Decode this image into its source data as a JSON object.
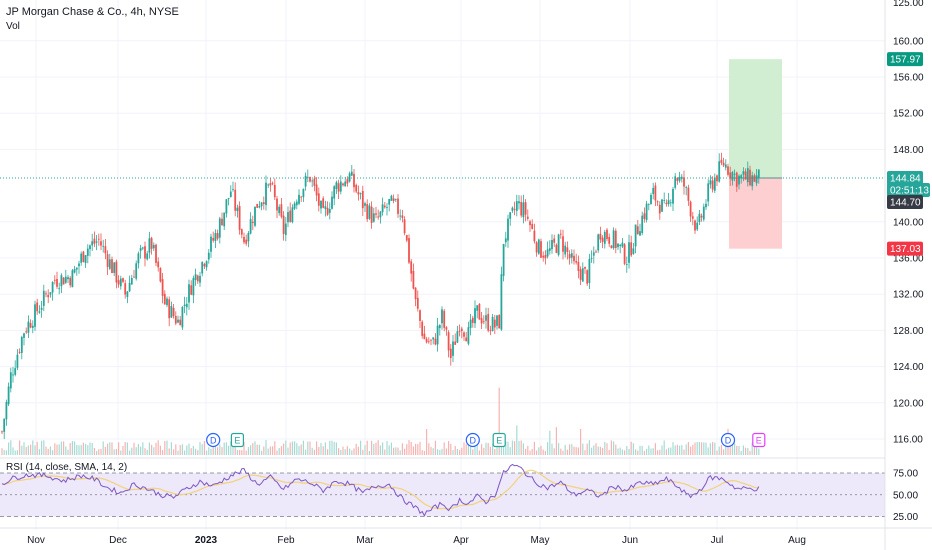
{
  "header": {
    "symbol_line": "JP Morgan Chase & Co., 4h, NYSE",
    "sub_line": "Vol"
  },
  "rsi": {
    "label": "RSI (14, close, SMA, 14, 2)",
    "ticks": [
      75.0,
      50.0,
      25.0
    ],
    "tick_labels": [
      "75.00",
      "50.00",
      "25.00"
    ]
  },
  "colors": {
    "up": "#26a69a",
    "down": "#ef5350",
    "target_zone": "#d1eed2",
    "stop_zone": "#fdcfd1",
    "target_tag": "#089981",
    "stop_tag": "#f23645",
    "price_tag": "#26a69a",
    "countdown_tag": "#363a45",
    "rsi_line": "#7e57c2",
    "rsi_ma": "#f2d27a",
    "rsi_band": "#ede9fb",
    "grid": "#f0f3fa"
  },
  "chart_data": {
    "type": "candlestick",
    "y_ticks": [
      116,
      120,
      124,
      128,
      132,
      136,
      140,
      148,
      152,
      156,
      160
    ],
    "y_tick_labels": [
      "116.00",
      "120.00",
      "124.00",
      "128.00",
      "132.00",
      "136.00",
      "140.00",
      "148.00",
      "152.00",
      "156.00",
      "160.00"
    ],
    "top_partial_label": "125.00",
    "ylim": [
      115.2,
      163.5
    ],
    "x_labels": [
      "Nov",
      "Dec",
      "2023",
      "Feb",
      "Mar",
      "Apr",
      "May",
      "Jun",
      "Jul",
      "Aug"
    ],
    "x_label_bold": [
      false,
      false,
      true,
      false,
      false,
      false,
      false,
      false,
      false,
      false
    ],
    "price_path": [
      [
        0,
        116.8
      ],
      [
        4,
        123
      ],
      [
        10,
        128
      ],
      [
        18,
        131
      ],
      [
        24,
        133.6
      ],
      [
        32,
        134
      ],
      [
        38,
        137
      ],
      [
        44,
        138
      ],
      [
        50,
        135
      ],
      [
        56,
        132
      ],
      [
        62,
        136
      ],
      [
        68,
        137.5
      ],
      [
        74,
        131
      ],
      [
        80,
        129
      ],
      [
        86,
        133
      ],
      [
        92,
        136
      ],
      [
        98,
        139
      ],
      [
        104,
        143.5
      ],
      [
        110,
        138
      ],
      [
        116,
        142
      ],
      [
        122,
        144
      ],
      [
        128,
        139
      ],
      [
        134,
        143
      ],
      [
        140,
        145
      ],
      [
        146,
        140.5
      ],
      [
        152,
        144
      ],
      [
        158,
        145
      ],
      [
        164,
        142
      ],
      [
        170,
        140
      ],
      [
        176,
        142
      ],
      [
        182,
        141
      ],
      [
        188,
        131
      ],
      [
        192,
        127
      ],
      [
        196,
        126.5
      ],
      [
        200,
        129.5
      ],
      [
        204,
        125
      ],
      [
        208,
        129
      ],
      [
        212,
        127.5
      ],
      [
        216,
        130
      ],
      [
        220,
        129
      ],
      [
        224,
        128.5
      ],
      [
        226,
        129
      ],
      [
        228,
        138
      ],
      [
        234,
        142
      ],
      [
        238,
        141
      ],
      [
        244,
        137
      ],
      [
        248,
        136.5
      ],
      [
        254,
        138
      ],
      [
        260,
        135
      ],
      [
        266,
        134
      ],
      [
        272,
        139
      ],
      [
        278,
        138
      ],
      [
        284,
        136
      ],
      [
        290,
        140
      ],
      [
        296,
        143
      ],
      [
        302,
        141
      ],
      [
        306,
        145.2
      ],
      [
        310,
        144
      ],
      [
        316,
        139
      ],
      [
        322,
        144
      ],
      [
        328,
        146.5
      ],
      [
        334,
        144.84
      ]
    ],
    "volume_spikes": [
      [
        193,
        1.0
      ],
      [
        212,
        0.55
      ],
      [
        226,
        3.3
      ],
      [
        234,
        1.2
      ],
      [
        249,
        0.9
      ],
      [
        252,
        1.1
      ],
      [
        263,
        1.0
      ],
      [
        330,
        1.0
      ]
    ],
    "events": [
      {
        "label": "D",
        "type": "dividend",
        "t": 96
      },
      {
        "label": "E",
        "type": "earnings",
        "t": 107
      },
      {
        "label": "D",
        "type": "dividend",
        "t": 214
      },
      {
        "label": "E",
        "type": "earnings",
        "t": 226
      },
      {
        "label": "D",
        "type": "dividend",
        "t": 330
      },
      {
        "label": "E",
        "type": "earnings",
        "t": 344
      }
    ],
    "position": {
      "entry": 144.84,
      "target": 157.97,
      "stop": 137.03
    },
    "tags": {
      "target": "157.97",
      "price": "144.84",
      "countdown": "02:51:13",
      "last": "144.70",
      "stop": "137.03"
    },
    "rsi_path": [
      [
        0,
        63
      ],
      [
        6,
        70
      ],
      [
        12,
        73
      ],
      [
        20,
        72
      ],
      [
        28,
        66
      ],
      [
        36,
        72
      ],
      [
        42,
        68
      ],
      [
        48,
        58
      ],
      [
        54,
        52
      ],
      [
        60,
        62
      ],
      [
        66,
        57
      ],
      [
        72,
        50
      ],
      [
        78,
        47
      ],
      [
        84,
        57
      ],
      [
        90,
        65
      ],
      [
        96,
        60
      ],
      [
        104,
        72
      ],
      [
        110,
        78
      ],
      [
        116,
        62
      ],
      [
        122,
        70
      ],
      [
        128,
        56
      ],
      [
        134,
        68
      ],
      [
        140,
        64
      ],
      [
        146,
        55
      ],
      [
        152,
        66
      ],
      [
        158,
        62
      ],
      [
        164,
        52
      ],
      [
        170,
        60
      ],
      [
        176,
        62
      ],
      [
        182,
        45
      ],
      [
        188,
        35
      ],
      [
        192,
        28
      ],
      [
        196,
        34
      ],
      [
        200,
        40
      ],
      [
        204,
        33
      ],
      [
        208,
        44
      ],
      [
        212,
        40
      ],
      [
        216,
        48
      ],
      [
        220,
        42
      ],
      [
        224,
        50
      ],
      [
        228,
        75
      ],
      [
        232,
        84
      ],
      [
        236,
        80
      ],
      [
        242,
        65
      ],
      [
        248,
        58
      ],
      [
        254,
        64
      ],
      [
        260,
        50
      ],
      [
        266,
        55
      ],
      [
        272,
        48
      ],
      [
        278,
        60
      ],
      [
        284,
        55
      ],
      [
        290,
        64
      ],
      [
        296,
        62
      ],
      [
        302,
        68
      ],
      [
        308,
        58
      ],
      [
        312,
        48
      ],
      [
        316,
        52
      ],
      [
        322,
        70
      ],
      [
        328,
        68
      ],
      [
        334,
        57
      ]
    ]
  }
}
